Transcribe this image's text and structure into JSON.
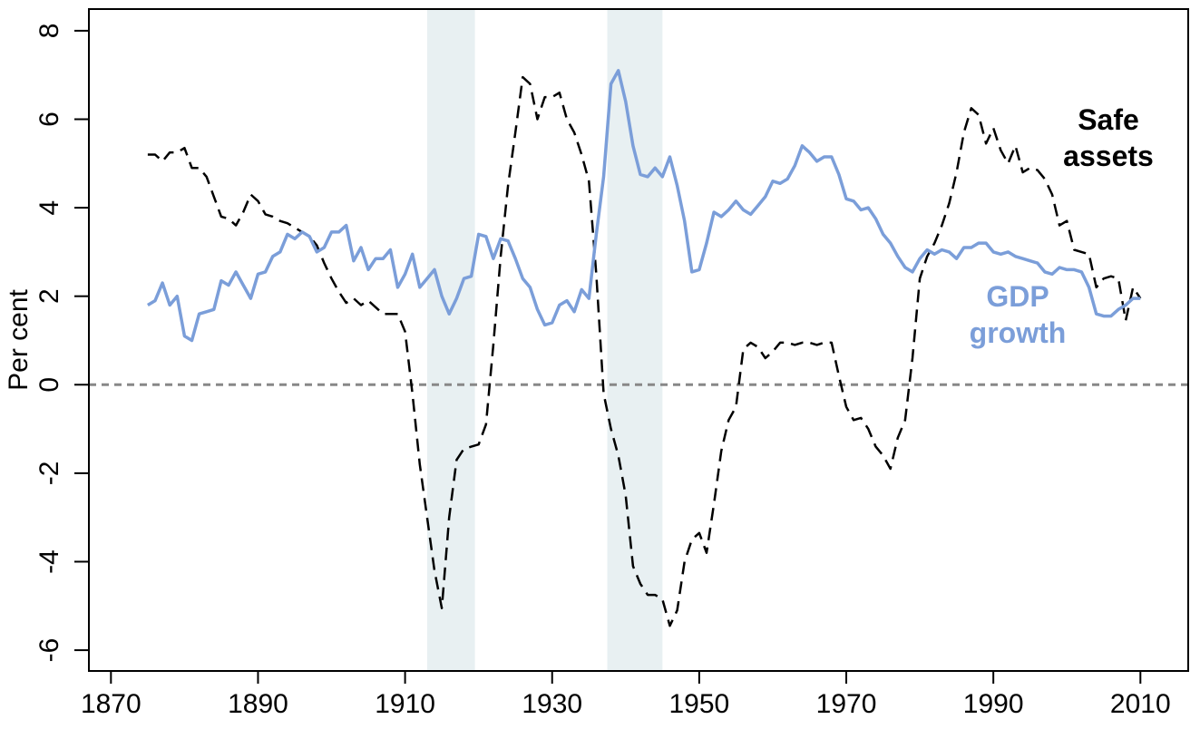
{
  "chart_data": {
    "type": "line",
    "ylabel": "Per cent",
    "xlim": [
      1867,
      2016.5
    ],
    "ylim": [
      -6.47,
      8.49
    ],
    "xticks": [
      1870,
      1890,
      1910,
      1930,
      1950,
      1970,
      1990,
      2010
    ],
    "yticks": [
      -6,
      -4,
      -2,
      0,
      2,
      4,
      6,
      8
    ],
    "zero_line": true,
    "shaded_regions": [
      [
        1913,
        1919.5
      ],
      [
        1937.5,
        1945
      ]
    ],
    "x": [
      1875,
      1876,
      1877,
      1878,
      1879,
      1880,
      1881,
      1882,
      1883,
      1884,
      1885,
      1886,
      1887,
      1888,
      1889,
      1890,
      1891,
      1892,
      1893,
      1894,
      1895,
      1896,
      1897,
      1898,
      1899,
      1900,
      1901,
      1902,
      1903,
      1904,
      1905,
      1906,
      1907,
      1908,
      1909,
      1910,
      1911,
      1912,
      1913,
      1914,
      1915,
      1916,
      1917,
      1918,
      1919,
      1920,
      1921,
      1922,
      1923,
      1924,
      1925,
      1926,
      1927,
      1928,
      1929,
      1930,
      1931,
      1932,
      1933,
      1934,
      1935,
      1936,
      1937,
      1938,
      1939,
      1940,
      1941,
      1942,
      1943,
      1944,
      1945,
      1946,
      1947,
      1948,
      1949,
      1950,
      1951,
      1952,
      1953,
      1954,
      1955,
      1956,
      1957,
      1958,
      1959,
      1960,
      1961,
      1962,
      1963,
      1964,
      1965,
      1966,
      1967,
      1968,
      1969,
      1970,
      1971,
      1972,
      1973,
      1974,
      1975,
      1976,
      1977,
      1978,
      1979,
      1980,
      1981,
      1982,
      1983,
      1984,
      1985,
      1986,
      1987,
      1988,
      1989,
      1990,
      1991,
      1992,
      1993,
      1994,
      1995,
      1996,
      1997,
      1998,
      1999,
      2000,
      2001,
      2002,
      2003,
      2004,
      2005,
      2006,
      2007,
      2008,
      2009,
      2010
    ],
    "series": [
      {
        "label_lines": [
          "Safe",
          "assets"
        ],
        "color": "#000000",
        "dashed": true,
        "values": [
          5.2,
          5.2,
          5.05,
          5.25,
          5.25,
          5.35,
          4.9,
          4.9,
          4.7,
          4.25,
          3.8,
          3.75,
          3.6,
          3.9,
          4.3,
          4.15,
          3.85,
          3.8,
          3.7,
          3.65,
          3.55,
          3.45,
          3.35,
          3.15,
          2.75,
          2.4,
          2.1,
          1.85,
          1.95,
          1.8,
          1.9,
          1.75,
          1.6,
          1.6,
          1.6,
          1.2,
          -0.2,
          -1.8,
          -3.0,
          -4.2,
          -5.05,
          -3.0,
          -1.7,
          -1.45,
          -1.4,
          -1.35,
          -0.9,
          0.9,
          2.9,
          4.5,
          5.7,
          6.95,
          6.8,
          6.0,
          6.5,
          6.5,
          6.6,
          6.0,
          5.7,
          5.2,
          4.6,
          2.5,
          -0.2,
          -1.0,
          -1.6,
          -2.5,
          -4.1,
          -4.5,
          -4.75,
          -4.75,
          -4.85,
          -5.45,
          -5.1,
          -4.0,
          -3.5,
          -3.35,
          -3.8,
          -2.7,
          -1.5,
          -0.8,
          -0.5,
          0.8,
          0.95,
          0.85,
          0.6,
          0.75,
          0.95,
          0.95,
          0.9,
          0.95,
          0.95,
          0.9,
          0.95,
          0.95,
          0.2,
          -0.5,
          -0.8,
          -0.75,
          -1.0,
          -1.4,
          -1.6,
          -1.9,
          -1.2,
          -0.8,
          0.6,
          2.4,
          2.9,
          3.2,
          3.6,
          4.1,
          4.8,
          5.7,
          6.25,
          6.1,
          5.45,
          5.8,
          5.3,
          5.0,
          5.4,
          4.8,
          4.9,
          4.85,
          4.65,
          4.3,
          3.6,
          3.7,
          3.05,
          3.0,
          2.95,
          2.2,
          2.4,
          2.45,
          2.4,
          1.45,
          2.2,
          1.95
        ]
      },
      {
        "label_lines": [
          "GDP",
          "growth"
        ],
        "color": "#7b9ed9",
        "dashed": false,
        "values": [
          1.8,
          1.9,
          2.3,
          1.8,
          2.0,
          1.1,
          1.0,
          1.6,
          1.65,
          1.7,
          2.35,
          2.25,
          2.55,
          2.25,
          1.95,
          2.5,
          2.55,
          2.9,
          3.0,
          3.4,
          3.3,
          3.45,
          3.35,
          3.0,
          3.1,
          3.45,
          3.45,
          3.6,
          2.8,
          3.1,
          2.6,
          2.85,
          2.85,
          3.05,
          2.2,
          2.5,
          2.95,
          2.2,
          2.4,
          2.6,
          2.0,
          1.6,
          1.95,
          2.4,
          2.45,
          3.4,
          3.35,
          2.85,
          3.3,
          3.25,
          2.85,
          2.4,
          2.2,
          1.7,
          1.35,
          1.4,
          1.8,
          1.9,
          1.65,
          2.15,
          1.95,
          3.4,
          4.7,
          6.8,
          7.1,
          6.4,
          5.4,
          4.75,
          4.7,
          4.9,
          4.7,
          5.15,
          4.5,
          3.7,
          2.55,
          2.6,
          3.2,
          3.9,
          3.8,
          3.95,
          4.15,
          3.95,
          3.85,
          4.05,
          4.25,
          4.6,
          4.55,
          4.65,
          4.95,
          5.4,
          5.25,
          5.05,
          5.15,
          5.15,
          4.75,
          4.2,
          4.15,
          3.95,
          4.0,
          3.75,
          3.4,
          3.2,
          2.9,
          2.65,
          2.55,
          2.85,
          3.05,
          2.95,
          3.05,
          3.0,
          2.85,
          3.1,
          3.1,
          3.2,
          3.2,
          3.0,
          2.95,
          3.0,
          2.9,
          2.85,
          2.8,
          2.75,
          2.55,
          2.5,
          2.65,
          2.6,
          2.6,
          2.55,
          2.2,
          1.6,
          1.55,
          1.55,
          1.7,
          1.8,
          1.95,
          1.95
        ]
      }
    ]
  }
}
